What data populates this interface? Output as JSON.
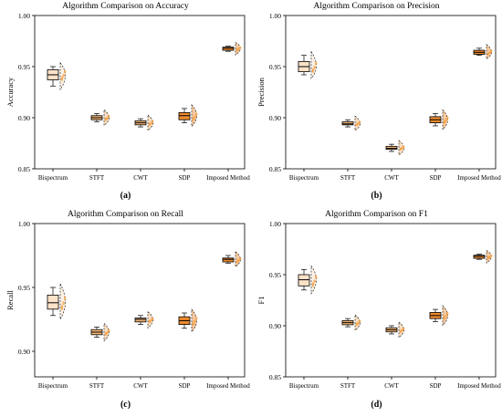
{
  "colors": {
    "box_outline": "#000000",
    "violin_fill_light": "#fde3c8",
    "violin_fill_mid": "#f7b977",
    "violin_fill_dark": "#ee8a2e",
    "point_fill": "#f5a24a"
  },
  "chart_data": [
    {
      "type": "box",
      "title": "Algorithm Comparison on Accuracy",
      "panel_label": "(a)",
      "ylabel": "Accuracy",
      "xlabel": "",
      "categories": [
        "Bispectrum",
        "STFT",
        "CWT",
        "SDP",
        "Imposed Method"
      ],
      "ylim": [
        0.85,
        1.0
      ],
      "yticks": [
        "0.85",
        "0.90",
        "0.95",
        "1.00"
      ],
      "boxes": [
        {
          "min": 0.931,
          "q1": 0.937,
          "median": 0.942,
          "q3": 0.947,
          "max": 0.95
        },
        {
          "min": 0.896,
          "q1": 0.898,
          "median": 0.9,
          "q3": 0.902,
          "max": 0.904
        },
        {
          "min": 0.891,
          "q1": 0.893,
          "median": 0.895,
          "q3": 0.897,
          "max": 0.899
        },
        {
          "min": 0.895,
          "q1": 0.898,
          "median": 0.902,
          "q3": 0.905,
          "max": 0.909
        },
        {
          "min": 0.965,
          "q1": 0.966,
          "median": 0.968,
          "q3": 0.969,
          "max": 0.97
        }
      ]
    },
    {
      "type": "box",
      "title": "Algorithm Comparison on Precision",
      "panel_label": "(b)",
      "ylabel": "Precision",
      "xlabel": "",
      "categories": [
        "Bispectrum",
        "STFT",
        "CWT",
        "SDP",
        "Imposed Method"
      ],
      "ylim": [
        0.85,
        1.0
      ],
      "yticks": [
        "0.85",
        "0.90",
        "0.95",
        "1.00"
      ],
      "boxes": [
        {
          "min": 0.942,
          "q1": 0.945,
          "median": 0.95,
          "q3": 0.955,
          "max": 0.961
        },
        {
          "min": 0.891,
          "q1": 0.893,
          "median": 0.894,
          "q3": 0.896,
          "max": 0.898
        },
        {
          "min": 0.867,
          "q1": 0.869,
          "median": 0.87,
          "q3": 0.872,
          "max": 0.874
        },
        {
          "min": 0.892,
          "q1": 0.895,
          "median": 0.898,
          "q3": 0.901,
          "max": 0.904
        },
        {
          "min": 0.961,
          "q1": 0.962,
          "median": 0.964,
          "q3": 0.966,
          "max": 0.968
        }
      ]
    },
    {
      "type": "box",
      "title": "Algorithm Comparison on Recall",
      "panel_label": "(c)",
      "ylabel": "Recall",
      "xlabel": "",
      "categories": [
        "Bispectrum",
        "STFT",
        "CWT",
        "SDP",
        "Imposed Method"
      ],
      "ylim": [
        0.88,
        1.0
      ],
      "yticks": [
        "0.90",
        "0.95",
        "1.00"
      ],
      "boxes": [
        {
          "min": 0.928,
          "q1": 0.933,
          "median": 0.938,
          "q3": 0.944,
          "max": 0.95
        },
        {
          "min": 0.911,
          "q1": 0.913,
          "median": 0.915,
          "q3": 0.917,
          "max": 0.919
        },
        {
          "min": 0.921,
          "q1": 0.923,
          "median": 0.925,
          "q3": 0.926,
          "max": 0.928
        },
        {
          "min": 0.918,
          "q1": 0.921,
          "median": 0.924,
          "q3": 0.927,
          "max": 0.93
        },
        {
          "min": 0.969,
          "q1": 0.97,
          "median": 0.972,
          "q3": 0.973,
          "max": 0.975
        }
      ]
    },
    {
      "type": "box",
      "title": "Algorithm Comparison on F1",
      "panel_label": "(d)",
      "ylabel": "F1",
      "xlabel": "",
      "categories": [
        "Bispectrum",
        "STFT",
        "CWT",
        "SDP",
        "Imposed Method"
      ],
      "ylim": [
        0.85,
        1.0
      ],
      "yticks": [
        "0.85",
        "0.90",
        "0.95",
        "1.00"
      ],
      "boxes": [
        {
          "min": 0.935,
          "q1": 0.939,
          "median": 0.945,
          "q3": 0.95,
          "max": 0.955
        },
        {
          "min": 0.899,
          "q1": 0.901,
          "median": 0.903,
          "q3": 0.905,
          "max": 0.907
        },
        {
          "min": 0.892,
          "q1": 0.894,
          "median": 0.896,
          "q3": 0.898,
          "max": 0.9
        },
        {
          "min": 0.904,
          "q1": 0.907,
          "median": 0.91,
          "q3": 0.913,
          "max": 0.916
        },
        {
          "min": 0.965,
          "q1": 0.966,
          "median": 0.968,
          "q3": 0.969,
          "max": 0.97
        }
      ]
    }
  ]
}
